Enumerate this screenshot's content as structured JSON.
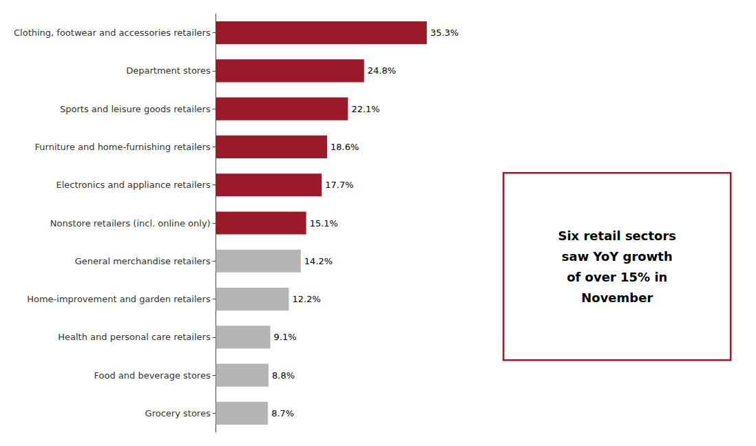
{
  "chart_data": {
    "type": "bar",
    "orientation": "horizontal",
    "categories": [
      "Grocery stores",
      "Food and beverage stores",
      "Health and personal care retailers",
      "Home-improvement and garden retailers",
      "General merchandise retailers",
      "Nonstore retailers (incl. online only)",
      "Electronics and appliance retailers",
      "Furniture and home-furnishing retailers",
      "Sports and leisure goods retailers",
      "Department stores",
      "Clothing, footwear and accessories retailers"
    ],
    "values": [
      8.7,
      8.8,
      9.1,
      12.2,
      14.2,
      15.1,
      17.7,
      18.6,
      22.1,
      24.8,
      35.3
    ],
    "value_labels": [
      "8.7%",
      "8.8%",
      "9.1%",
      "12.2%",
      "14.2%",
      "15.1%",
      "17.7%",
      "18.6%",
      "22.1%",
      "24.8%",
      "35.3%"
    ],
    "colors": [
      "#b5b5b5",
      "#b5b5b5",
      "#b5b5b5",
      "#b5b5b5",
      "#b5b5b5",
      "#9b1a2a",
      "#9b1a2a",
      "#9b1a2a",
      "#9b1a2a",
      "#9b1a2a",
      "#9b1a2a"
    ],
    "xlim": [
      0,
      42
    ],
    "data_labels": true,
    "tick_labels": "y",
    "grid": false,
    "annotation": {
      "text": "Six retail sectors\nsaw YoY growth\nof over 15% in\nNovember",
      "color": "#9b1a2a"
    }
  }
}
